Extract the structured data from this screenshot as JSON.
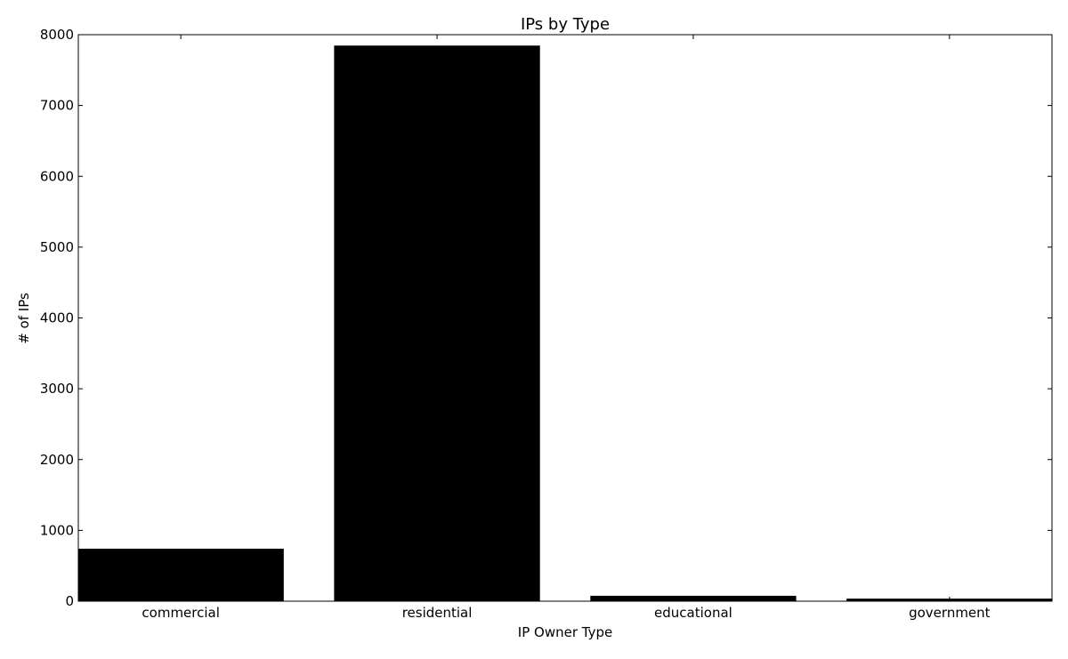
{
  "chart_data": {
    "type": "bar",
    "title": "IPs by Type",
    "xlabel": "IP Owner Type",
    "ylabel": "# of IPs",
    "categories": [
      "commercial",
      "residential",
      "educational",
      "government"
    ],
    "values": [
      735,
      7840,
      70,
      30
    ],
    "ylim": [
      0,
      8000
    ],
    "yticks": [
      0,
      1000,
      2000,
      3000,
      4000,
      5000,
      6000,
      7000,
      8000
    ],
    "grid": false,
    "bar_color": "#000000"
  }
}
